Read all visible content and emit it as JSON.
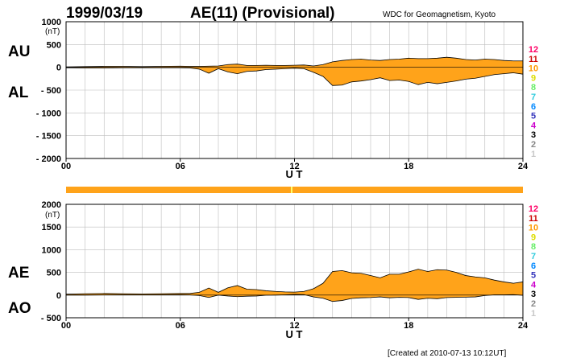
{
  "header": {
    "date": "1999/03/19",
    "title": "AE(11) (Provisional)",
    "source": "WDC for Geomagnetism, Kyoto"
  },
  "footer": {
    "created": "[Created at 2010-07-13 10:12UT]"
  },
  "colors": {
    "fill": "#ffa31a",
    "grid": "#bdbdbd",
    "bar": "#ffa31a",
    "bar_tick": "#ffff66",
    "levels": [
      "#c8c8c8",
      "#888888",
      "#000000",
      "#cc00cc",
      "#3333bb",
      "#0088ff",
      "#33ccdd",
      "#66ee66",
      "#dddd00",
      "#ff9900",
      "#cc0000",
      "#ff0066"
    ]
  },
  "levels": [
    "12",
    "11",
    "10",
    "9",
    "8",
    "7",
    "6",
    "5",
    "4",
    "3",
    "2",
    "1"
  ],
  "chart_data": [
    {
      "type": "area",
      "labels": {
        "upper": "AU",
        "lower": "AL"
      },
      "unit": "(nT)",
      "xlabel": "U T",
      "xticks": [
        "00",
        "06",
        "12",
        "18",
        "24"
      ],
      "yticks": [
        "1000",
        "500",
        "0",
        "- 500",
        "- 1000",
        "- 1500",
        "- 2000"
      ],
      "ylim": [
        -2000,
        1000
      ],
      "xlim": [
        0,
        24
      ],
      "grid": true,
      "x": [
        0,
        1,
        2,
        3,
        4,
        5,
        6,
        6.5,
        7,
        7.5,
        8,
        8.5,
        9,
        9.5,
        10,
        10.5,
        11,
        11.5,
        12,
        12.5,
        13,
        13.5,
        14,
        14.5,
        15,
        15.5,
        16,
        16.5,
        17,
        17.5,
        18,
        18.5,
        19,
        19.5,
        20,
        20.5,
        21,
        21.5,
        22,
        22.5,
        23,
        23.5,
        24
      ],
      "series": [
        {
          "name": "AU",
          "values": [
            10,
            15,
            20,
            20,
            15,
            20,
            25,
            20,
            20,
            25,
            30,
            60,
            70,
            40,
            40,
            45,
            40,
            40,
            45,
            50,
            30,
            60,
            120,
            150,
            170,
            180,
            160,
            150,
            170,
            180,
            200,
            190,
            190,
            200,
            220,
            200,
            170,
            160,
            180,
            170,
            150,
            140,
            140
          ]
        },
        {
          "name": "AL",
          "values": [
            -10,
            -15,
            -15,
            -10,
            -10,
            -10,
            -10,
            -15,
            -40,
            -130,
            -30,
            -100,
            -140,
            -90,
            -80,
            -50,
            -40,
            -30,
            -20,
            -30,
            -110,
            -200,
            -400,
            -390,
            -320,
            -300,
            -270,
            -230,
            -290,
            -280,
            -310,
            -380,
            -330,
            -360,
            -330,
            -300,
            -260,
            -240,
            -200,
            -160,
            -140,
            -120,
            -150
          ]
        }
      ]
    },
    {
      "type": "area",
      "labels": {
        "upper": "AE",
        "lower": "AO"
      },
      "unit": "(nT)",
      "xlabel": "U T",
      "xticks": [
        "00",
        "06",
        "12",
        "18",
        "24"
      ],
      "yticks": [
        "2000",
        "1500",
        "1000",
        "500",
        "0",
        "- 500"
      ],
      "ylim": [
        -500,
        2000
      ],
      "xlim": [
        0,
        24
      ],
      "grid": true,
      "x": [
        0,
        1,
        2,
        3,
        4,
        5,
        6,
        6.5,
        7,
        7.5,
        8,
        8.5,
        9,
        9.5,
        10,
        10.5,
        11,
        11.5,
        12,
        12.5,
        13,
        13.5,
        14,
        14.5,
        15,
        15.5,
        16,
        16.5,
        17,
        17.5,
        18,
        18.5,
        19,
        19.5,
        20,
        20.5,
        21,
        21.5,
        22,
        22.5,
        23,
        23.5,
        24
      ],
      "series": [
        {
          "name": "AE",
          "values": [
            20,
            30,
            35,
            30,
            25,
            30,
            35,
            35,
            60,
            155,
            60,
            160,
            210,
            130,
            120,
            95,
            80,
            70,
            65,
            80,
            140,
            260,
            520,
            540,
            490,
            480,
            430,
            380,
            460,
            460,
            510,
            570,
            520,
            560,
            550,
            500,
            430,
            400,
            380,
            330,
            290,
            260,
            290
          ]
        },
        {
          "name": "AO",
          "values": [
            0,
            0,
            3,
            5,
            3,
            5,
            8,
            3,
            -10,
            -52,
            0,
            -20,
            -35,
            -25,
            -20,
            -3,
            0,
            5,
            13,
            10,
            -40,
            -70,
            -140,
            -120,
            -75,
            -60,
            -55,
            -40,
            -60,
            -50,
            -55,
            -95,
            -70,
            -80,
            -55,
            -50,
            -45,
            -40,
            -10,
            5,
            5,
            10,
            -5
          ]
        }
      ]
    }
  ]
}
